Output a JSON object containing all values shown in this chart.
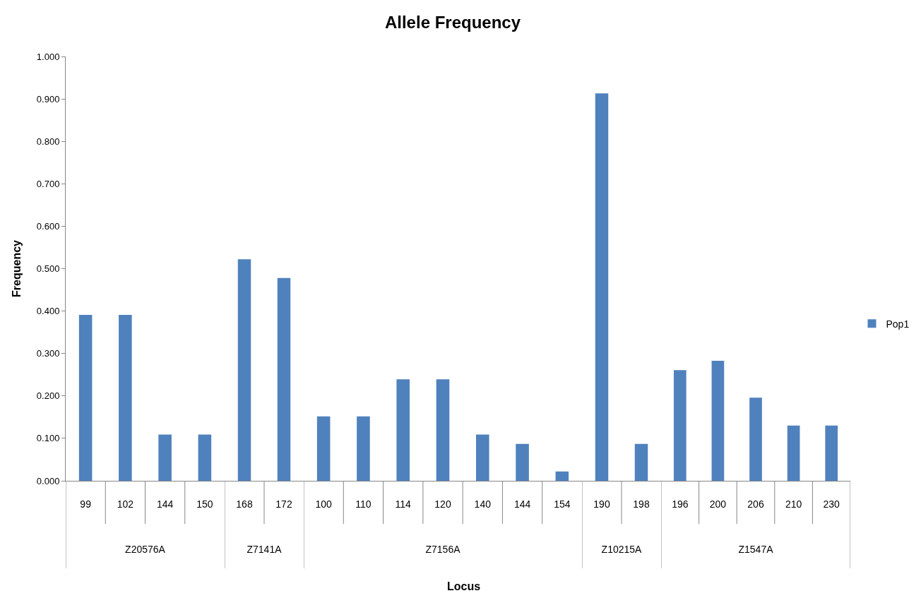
{
  "chart_data": [
    {
      "type": "bar",
      "ylabel": "Frequency",
      "xlabel": "Z20576A",
      "categories": [
        "99",
        "102",
        "144",
        "150"
      ],
      "series": [
        {
          "color": "#4f81bd",
          "values": [
            0.391,
            0.391,
            0.109,
            0.109
          ]
        }
      ],
      "ylim": [
        0,
        1
      ],
      "yticks": [
        {
          "value": 0,
          "label": "0.000"
        },
        {
          "value": 0.1,
          "label": "0.100"
        },
        {
          "value": 0.2,
          "label": "0.200"
        },
        {
          "value": 0.3,
          "label": "0.300"
        },
        {
          "value": 0.4,
          "label": "0.400"
        },
        {
          "value": 0.5,
          "label": "0.500"
        },
        {
          "value": 0.6,
          "label": "0.600"
        },
        {
          "value": 0.7,
          "label": "0.700"
        },
        {
          "value": 0.8,
          "label": "0.800"
        },
        {
          "value": 0.9,
          "label": "0.900"
        },
        {
          "value": 1,
          "label": "1.000"
        }
      ]
    },
    {
      "type": "bar",
      "xlabel": "Z7141A",
      "categories": [
        "168",
        "172"
      ],
      "series": [
        {
          "color": "#4f81bd",
          "values": [
            0.522,
            0.478
          ]
        }
      ],
      "ylim": [
        0,
        1
      ],
      "tick_labels": "x"
    },
    {
      "type": "bar",
      "title": "Allele Frequency",
      "xlabel": "Z7156A",
      "categories": [
        "100",
        "110",
        "114",
        "120",
        "140",
        "144",
        "154"
      ],
      "series": [
        {
          "color": "#4f81bd",
          "values": [
            0.152,
            0.152,
            0.239,
            0.239,
            0.109,
            0.087,
            0.022
          ]
        }
      ],
      "ylim": [
        0,
        1
      ],
      "tick_labels": "x",
      "annotations": [
        "Locus"
      ]
    },
    {
      "type": "bar",
      "xlabel": "Z10215A",
      "categories": [
        "190",
        "198"
      ],
      "series": [
        {
          "color": "#4f81bd",
          "values": [
            0.913,
            0.087
          ]
        }
      ],
      "ylim": [
        0,
        1
      ],
      "tick_labels": "x"
    },
    {
      "type": "bar",
      "xlabel": "Z1547A",
      "categories": [
        "196",
        "200",
        "206",
        "210",
        "230"
      ],
      "series": [
        {
          "name": "Pop1",
          "color": "#4f81bd",
          "values": [
            0.261,
            0.283,
            0.196,
            0.13,
            0.13
          ]
        }
      ],
      "ylim": [
        0,
        1
      ],
      "tick_labels": "x",
      "legend": "right"
    }
  ]
}
